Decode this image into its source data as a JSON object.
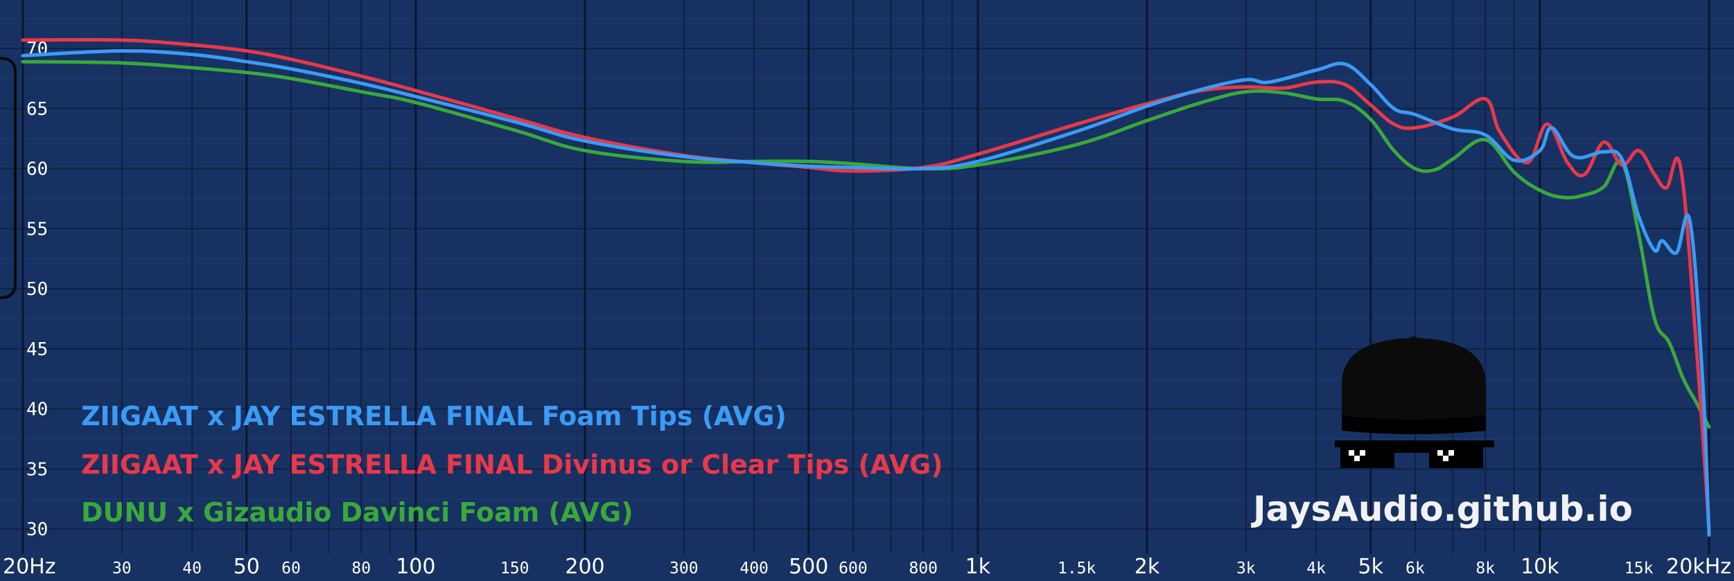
{
  "chart_data": {
    "type": "line",
    "title": "",
    "xlabel": "",
    "ylabel": "",
    "x_scale": "log",
    "xlim": [
      20,
      20000
    ],
    "ylim": [
      29,
      72
    ],
    "grid": true,
    "legend_position": "bottom-left",
    "x_ticks": [
      {
        "value": 20,
        "label": "20Hz",
        "major": true
      },
      {
        "value": 30,
        "label": "30",
        "major": false
      },
      {
        "value": 40,
        "label": "40",
        "major": false
      },
      {
        "value": 50,
        "label": "50",
        "major": true
      },
      {
        "value": 60,
        "label": "60",
        "major": false
      },
      {
        "value": 80,
        "label": "80",
        "major": false
      },
      {
        "value": 100,
        "label": "100",
        "major": true
      },
      {
        "value": 150,
        "label": "150",
        "major": false
      },
      {
        "value": 200,
        "label": "200",
        "major": true
      },
      {
        "value": 300,
        "label": "300",
        "major": false
      },
      {
        "value": 400,
        "label": "400",
        "major": false
      },
      {
        "value": 500,
        "label": "500",
        "major": true
      },
      {
        "value": 600,
        "label": "600",
        "major": false
      },
      {
        "value": 800,
        "label": "800",
        "major": false
      },
      {
        "value": 1000,
        "label": "1k",
        "major": true
      },
      {
        "value": 1500,
        "label": "1.5k",
        "major": false
      },
      {
        "value": 2000,
        "label": "2k",
        "major": true
      },
      {
        "value": 3000,
        "label": "3k",
        "major": false
      },
      {
        "value": 4000,
        "label": "4k",
        "major": false
      },
      {
        "value": 5000,
        "label": "5k",
        "major": true
      },
      {
        "value": 6000,
        "label": "6k",
        "major": false
      },
      {
        "value": 8000,
        "label": "8k",
        "major": false
      },
      {
        "value": 10000,
        "label": "10k",
        "major": true
      },
      {
        "value": 15000,
        "label": "15k",
        "major": false
      },
      {
        "value": 20000,
        "label": "20kHz",
        "major": true
      }
    ],
    "y_ticks": [
      {
        "value": 70,
        "label": "70"
      },
      {
        "value": 65,
        "label": "65"
      },
      {
        "value": 60,
        "label": "60"
      },
      {
        "value": 55,
        "label": "55"
      },
      {
        "value": 50,
        "label": "50"
      },
      {
        "value": 45,
        "label": "45"
      },
      {
        "value": 40,
        "label": "40"
      },
      {
        "value": 35,
        "label": "35"
      },
      {
        "value": 30,
        "label": "30"
      }
    ],
    "series": [
      {
        "name": "ZIIGAAT x JAY ESTRELLA FINAL Foam Tips (AVG)",
        "name_parts": [
          "ZIIGAAT x JAY ESTRELLA FINAL",
          "Foam Tips (AVG)"
        ],
        "color": "#3b9bf5",
        "points": [
          [
            20,
            69.4
          ],
          [
            30,
            69.8
          ],
          [
            40,
            69.5
          ],
          [
            50,
            68.9
          ],
          [
            60,
            68.3
          ],
          [
            80,
            67.1
          ],
          [
            100,
            66.0
          ],
          [
            150,
            63.9
          ],
          [
            200,
            62.3
          ],
          [
            300,
            61.0
          ],
          [
            400,
            60.5
          ],
          [
            500,
            60.2
          ],
          [
            600,
            60.1
          ],
          [
            800,
            60.0
          ],
          [
            1000,
            60.6
          ],
          [
            1500,
            63.1
          ],
          [
            2000,
            65.2
          ],
          [
            2500,
            66.6
          ],
          [
            3000,
            67.4
          ],
          [
            3300,
            67.2
          ],
          [
            4000,
            68.2
          ],
          [
            4500,
            68.7
          ],
          [
            5000,
            67.0
          ],
          [
            5500,
            65.0
          ],
          [
            6000,
            64.5
          ],
          [
            7000,
            63.3
          ],
          [
            8000,
            62.8
          ],
          [
            9000,
            60.7
          ],
          [
            10000,
            61.5
          ],
          [
            10500,
            63.4
          ],
          [
            11500,
            61.0
          ],
          [
            13000,
            61.4
          ],
          [
            14000,
            60.8
          ],
          [
            15000,
            56.0
          ],
          [
            16000,
            53.2
          ],
          [
            16500,
            54.0
          ],
          [
            17500,
            53.0
          ],
          [
            18500,
            55.6
          ],
          [
            19500,
            42.0
          ],
          [
            20000,
            29.5
          ]
        ]
      },
      {
        "name": "ZIIGAAT x JAY ESTRELLA FINAL Divinus or Clear Tips (AVG)",
        "name_parts": [
          "ZIIGAAT x JAY ESTRELLA FINAL",
          "Divinus or Clear Tips (AVG)"
        ],
        "color": "#e8384a",
        "points": [
          [
            20,
            70.7
          ],
          [
            30,
            70.7
          ],
          [
            40,
            70.3
          ],
          [
            50,
            69.8
          ],
          [
            60,
            69.1
          ],
          [
            80,
            67.7
          ],
          [
            100,
            66.5
          ],
          [
            150,
            64.2
          ],
          [
            200,
            62.6
          ],
          [
            300,
            61.1
          ],
          [
            400,
            60.5
          ],
          [
            500,
            60.1
          ],
          [
            600,
            59.8
          ],
          [
            800,
            60.1
          ],
          [
            1000,
            61.2
          ],
          [
            1500,
            63.7
          ],
          [
            2000,
            65.4
          ],
          [
            2500,
            66.5
          ],
          [
            3000,
            66.8
          ],
          [
            3500,
            66.7
          ],
          [
            4000,
            67.2
          ],
          [
            4500,
            67.0
          ],
          [
            5000,
            65.3
          ],
          [
            5500,
            63.7
          ],
          [
            6000,
            63.4
          ],
          [
            7000,
            64.3
          ],
          [
            8000,
            65.8
          ],
          [
            8500,
            63.0
          ],
          [
            9500,
            60.5
          ],
          [
            10300,
            63.7
          ],
          [
            11200,
            60.5
          ],
          [
            12000,
            59.5
          ],
          [
            13000,
            62.2
          ],
          [
            14000,
            60.3
          ],
          [
            15000,
            61.5
          ],
          [
            16000,
            59.5
          ],
          [
            16800,
            58.4
          ],
          [
            17800,
            60.1
          ],
          [
            19000,
            45.0
          ],
          [
            20000,
            30.0
          ]
        ]
      },
      {
        "name": "DUNU x Gizaudio Davinci Foam (AVG)",
        "name_parts": [
          "DUNU x Gizaudio Davinci Foam (AVG)",
          ""
        ],
        "color": "#3aa83a",
        "points": [
          [
            20,
            68.9
          ],
          [
            30,
            68.8
          ],
          [
            40,
            68.4
          ],
          [
            50,
            68.0
          ],
          [
            60,
            67.5
          ],
          [
            80,
            66.4
          ],
          [
            100,
            65.5
          ],
          [
            150,
            63.2
          ],
          [
            200,
            61.5
          ],
          [
            300,
            60.6
          ],
          [
            400,
            60.6
          ],
          [
            500,
            60.6
          ],
          [
            600,
            60.4
          ],
          [
            800,
            60.0
          ],
          [
            1000,
            60.3
          ],
          [
            1500,
            62.0
          ],
          [
            2000,
            64.0
          ],
          [
            2500,
            65.5
          ],
          [
            3000,
            66.4
          ],
          [
            3500,
            66.3
          ],
          [
            4000,
            65.8
          ],
          [
            4500,
            65.6
          ],
          [
            5000,
            64.1
          ],
          [
            5500,
            61.5
          ],
          [
            6000,
            60.0
          ],
          [
            6500,
            59.9
          ],
          [
            7000,
            60.8
          ],
          [
            8000,
            62.4
          ],
          [
            9000,
            59.7
          ],
          [
            10000,
            58.2
          ],
          [
            11000,
            57.6
          ],
          [
            12000,
            57.8
          ],
          [
            13000,
            58.5
          ],
          [
            14000,
            60.5
          ],
          [
            15000,
            54.5
          ],
          [
            16000,
            47.5
          ],
          [
            17000,
            45.5
          ],
          [
            18000,
            42.5
          ],
          [
            19000,
            40.5
          ],
          [
            20000,
            38.5
          ]
        ]
      }
    ]
  },
  "watermark": {
    "text": "JaysAudio.github.io",
    "logo_icon": "hat-and-pixel-sunglasses"
  },
  "colors": {
    "background": "#173262",
    "axis_text": "#ffffff"
  }
}
